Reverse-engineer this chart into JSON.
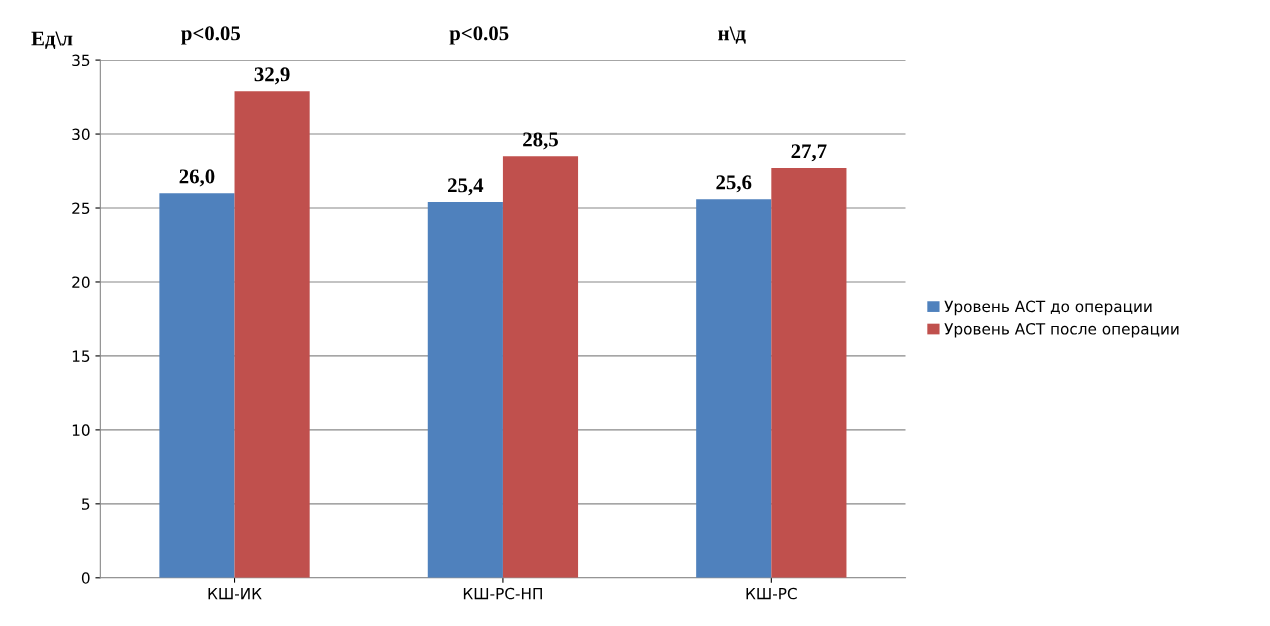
{
  "chart_data": {
    "type": "bar",
    "ylabel": "Ед\\л",
    "categories": [
      "КШ-ИК",
      "КШ-РС-НП",
      "КШ-РС"
    ],
    "series": [
      {
        "name": "Уровень АСТ до операции",
        "color": "#4f81bd",
        "values": [
          26.0,
          25.4,
          25.6
        ],
        "value_labels": [
          "26,0",
          "25,4",
          "25,6"
        ]
      },
      {
        "name": "Уровень АСТ после операции",
        "color": "#c0504d",
        "values": [
          32.9,
          28.5,
          27.7
        ],
        "value_labels": [
          "32,9",
          "28,5",
          "27,7"
        ]
      }
    ],
    "annotations": [
      "p<0.05",
      "p<0.05",
      "н\\д"
    ],
    "ylim": [
      0,
      35
    ],
    "yticks": [
      0,
      5,
      10,
      15,
      20,
      25,
      30,
      35
    ],
    "grid": "y",
    "legend": "right"
  }
}
